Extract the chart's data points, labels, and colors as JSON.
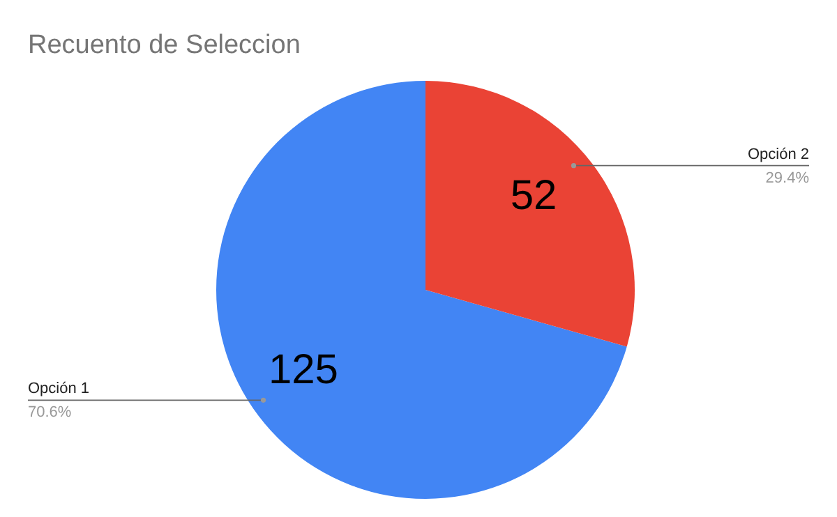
{
  "chart_data": {
    "type": "pie",
    "title": "Recuento de Seleccion",
    "categories": [
      "Opción 1",
      "Opción 2"
    ],
    "values": [
      125,
      52
    ],
    "colors": [
      "#4285f4",
      "#ea4335"
    ],
    "data_labels": true,
    "annotations": [
      {
        "text": "70.6%",
        "x": "Opción 1"
      },
      {
        "text": "29.4%",
        "x": "Opción 2"
      }
    ]
  }
}
